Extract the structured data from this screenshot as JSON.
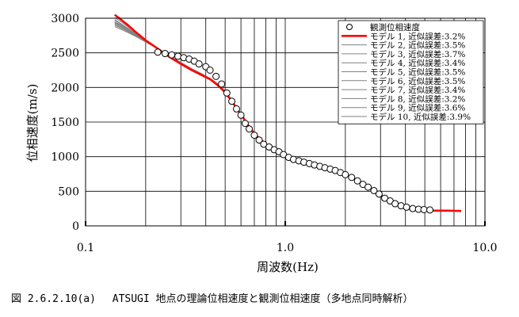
{
  "chart_data": {
    "type": "scatter",
    "title": "",
    "xlabel": "周波数(Hz)",
    "ylabel": "位相速度(m/s)",
    "x_scale": "log",
    "xlim": [
      0.1,
      10.0
    ],
    "ylim": [
      0,
      3000
    ],
    "x_ticks": [
      0.1,
      1.0,
      10.0
    ],
    "x_tick_labels": [
      "0.1",
      "1.0",
      "10.0"
    ],
    "y_ticks": [
      0,
      500,
      1000,
      1500,
      2000,
      2500,
      3000
    ],
    "y_tick_labels": [
      "0",
      "500",
      "1000",
      "1500",
      "2000",
      "2500",
      "3000"
    ],
    "grid": true,
    "legend_position": "top-right",
    "observed": {
      "name": "観測位相速度",
      "points": [
        [
          0.23,
          2510
        ],
        [
          0.25,
          2490
        ],
        [
          0.27,
          2470
        ],
        [
          0.29,
          2450
        ],
        [
          0.31,
          2430
        ],
        [
          0.33,
          2410
        ],
        [
          0.35,
          2380
        ],
        [
          0.37,
          2340
        ],
        [
          0.4,
          2300
        ],
        [
          0.42,
          2250
        ],
        [
          0.45,
          2160
        ],
        [
          0.48,
          2050
        ],
        [
          0.51,
          1920
        ],
        [
          0.54,
          1800
        ],
        [
          0.57,
          1690
        ],
        [
          0.6,
          1600
        ],
        [
          0.63,
          1480
        ],
        [
          0.66,
          1400
        ],
        [
          0.7,
          1310
        ],
        [
          0.74,
          1240
        ],
        [
          0.78,
          1180
        ],
        [
          0.83,
          1140
        ],
        [
          0.88,
          1100
        ],
        [
          0.93,
          1070
        ],
        [
          0.98,
          1030
        ],
        [
          1.04,
          990
        ],
        [
          1.1,
          960
        ],
        [
          1.17,
          940
        ],
        [
          1.24,
          920
        ],
        [
          1.32,
          900
        ],
        [
          1.4,
          880
        ],
        [
          1.49,
          860
        ],
        [
          1.58,
          840
        ],
        [
          1.68,
          820
        ],
        [
          1.78,
          800
        ],
        [
          1.89,
          770
        ],
        [
          2.0,
          740
        ],
        [
          2.15,
          700
        ],
        [
          2.3,
          650
        ],
        [
          2.45,
          600
        ],
        [
          2.6,
          560
        ],
        [
          2.78,
          510
        ],
        [
          2.95,
          460
        ],
        [
          3.15,
          400
        ],
        [
          3.35,
          360
        ],
        [
          3.55,
          320
        ],
        [
          3.8,
          290
        ],
        [
          4.05,
          270
        ],
        [
          4.35,
          250
        ],
        [
          4.65,
          240
        ],
        [
          4.95,
          235
        ],
        [
          5.3,
          230
        ]
      ]
    },
    "series": [
      {
        "name": "モデル 1, 近似誤差:3.2%",
        "color": "#ff0000",
        "x": [
          0.14,
          0.16,
          0.18,
          0.2,
          0.23,
          0.26,
          0.3,
          0.34,
          0.38,
          0.42,
          0.46,
          0.5,
          0.54,
          0.58,
          0.62,
          0.66,
          0.7,
          0.75,
          0.8,
          0.85,
          0.9,
          0.95,
          1.0,
          1.1,
          1.2,
          1.3,
          1.4,
          1.5,
          1.65,
          1.8,
          2.0,
          2.2,
          2.4,
          2.6,
          2.8,
          3.0,
          3.25,
          3.5,
          3.75,
          4.0,
          4.3,
          4.6,
          5.0,
          5.5,
          6.0,
          6.5,
          7.0,
          7.6
        ],
        "y": [
          3050,
          2920,
          2790,
          2680,
          2560,
          2450,
          2340,
          2250,
          2180,
          2120,
          2030,
          1930,
          1800,
          1670,
          1550,
          1430,
          1330,
          1250,
          1180,
          1130,
          1090,
          1050,
          1020,
          970,
          930,
          900,
          880,
          860,
          830,
          790,
          740,
          680,
          620,
          560,
          500,
          440,
          380,
          330,
          290,
          265,
          245,
          235,
          225,
          220,
          220,
          220,
          218,
          215
        ]
      },
      {
        "name": "モデル 2, 近似誤差:3.5%",
        "color": "#808080",
        "x": [
          0.14,
          0.16,
          0.18,
          0.2,
          0.23,
          0.26,
          0.3,
          0.34,
          0.38,
          0.42,
          0.46,
          0.5,
          0.54,
          0.58,
          0.62,
          0.66,
          0.7,
          0.75,
          0.8,
          0.85,
          0.9,
          0.95,
          1.0,
          1.1,
          1.2,
          1.3,
          1.4,
          1.5,
          1.65,
          1.8,
          2.0,
          2.2,
          2.4,
          2.6,
          2.8,
          3.0,
          3.25,
          3.5,
          3.75,
          4.0,
          4.3,
          4.6,
          5.0,
          5.5,
          6.0,
          6.5,
          7.0,
          7.6
        ],
        "y": [
          2940,
          2850,
          2760,
          2670,
          2560,
          2450,
          2350,
          2260,
          2190,
          2120,
          2040,
          1940,
          1810,
          1670,
          1550,
          1430,
          1330,
          1250,
          1180,
          1130,
          1090,
          1050,
          1020,
          970,
          930,
          905,
          885,
          865,
          835,
          795,
          745,
          685,
          625,
          565,
          505,
          445,
          385,
          335,
          295,
          268,
          248,
          238,
          228,
          222,
          222,
          222,
          220,
          218
        ]
      },
      {
        "name": "モデル 3, 近似誤差:3.7%",
        "color": "#808080",
        "x": [
          0.14,
          0.16,
          0.18,
          0.2,
          0.23,
          0.26,
          0.3,
          0.34,
          0.38,
          0.42,
          0.46,
          0.5,
          0.54,
          0.58,
          0.62,
          0.66,
          0.7,
          0.75,
          0.8,
          0.85,
          0.9,
          0.95,
          1.0,
          1.1,
          1.2,
          1.3,
          1.4,
          1.5,
          1.65,
          1.8,
          2.0,
          2.2,
          2.4,
          2.6,
          2.8,
          3.0,
          3.25,
          3.5,
          3.75,
          4.0,
          4.3,
          4.6,
          5.0,
          5.5,
          6.0,
          6.5,
          7.0,
          7.6
        ],
        "y": [
          2900,
          2820,
          2740,
          2660,
          2560,
          2460,
          2360,
          2270,
          2200,
          2130,
          2050,
          1950,
          1820,
          1680,
          1560,
          1440,
          1340,
          1255,
          1185,
          1135,
          1092,
          1052,
          1022,
          972,
          932,
          903,
          882,
          862,
          832,
          792,
          742,
          682,
          622,
          562,
          502,
          442,
          382,
          332,
          292,
          267,
          247,
          237,
          227,
          221,
          221,
          221,
          219,
          217
        ]
      },
      {
        "name": "モデル 4, 近似誤差:3.4%",
        "color": "#808080",
        "x": [
          0.14,
          0.16,
          0.18,
          0.2,
          0.23,
          0.26,
          0.3,
          0.34,
          0.38,
          0.42,
          0.46,
          0.5,
          0.54,
          0.58,
          0.62,
          0.66,
          0.7,
          0.75,
          0.8,
          0.85,
          0.9,
          0.95,
          1.0,
          1.1,
          1.2,
          1.3,
          1.4,
          1.5,
          1.65,
          1.8,
          2.0,
          2.2,
          2.4,
          2.6,
          2.8,
          3.0,
          3.25,
          3.5,
          3.75,
          4.0,
          4.3,
          4.6,
          5.0,
          5.5,
          6.0,
          6.5,
          7.0,
          7.6
        ],
        "y": [
          2980,
          2870,
          2770,
          2670,
          2560,
          2450,
          2345,
          2255,
          2185,
          2118,
          2035,
          1935,
          1805,
          1672,
          1552,
          1432,
          1332,
          1252,
          1182,
          1132,
          1091,
          1051,
          1021,
          971,
          931,
          902,
          881,
          861,
          831,
          791,
          741,
          681,
          621,
          561,
          501,
          441,
          381,
          331,
          291,
          266,
          246,
          236,
          226,
          220,
          220,
          220,
          218,
          216
        ]
      },
      {
        "name": "モデル 5, 近似誤差:3.5%",
        "color": "#808080",
        "x": [
          0.14,
          0.16,
          0.18,
          0.2,
          0.23,
          0.26,
          0.3,
          0.34,
          0.38,
          0.42,
          0.46,
          0.5,
          0.54,
          0.58,
          0.62,
          0.66,
          0.7,
          0.75,
          0.8,
          0.85,
          0.9,
          0.95,
          1.0,
          1.1,
          1.2,
          1.3,
          1.4,
          1.5,
          1.65,
          1.8,
          2.0,
          2.2,
          2.4,
          2.6,
          2.8,
          3.0,
          3.25,
          3.5,
          3.75,
          4.0,
          4.3,
          4.6,
          5.0,
          5.5,
          6.0,
          6.5,
          7.0,
          7.6
        ],
        "y": [
          2950,
          2855,
          2760,
          2668,
          2558,
          2452,
          2352,
          2262,
          2192,
          2122,
          2042,
          1942,
          1812,
          1675,
          1555,
          1435,
          1335,
          1253,
          1183,
          1133,
          1091,
          1051,
          1021,
          971,
          931,
          904,
          884,
          864,
          834,
          794,
          744,
          684,
          624,
          564,
          504,
          444,
          384,
          334,
          294,
          268,
          248,
          237,
          227,
          221,
          221,
          221,
          219,
          217
        ]
      },
      {
        "name": "モデル 6, 近似誤差:3.5%",
        "color": "#808080",
        "x": [
          0.14,
          0.16,
          0.18,
          0.2,
          0.23,
          0.26,
          0.3,
          0.34,
          0.38,
          0.42,
          0.46,
          0.5,
          0.54,
          0.58,
          0.62,
          0.66,
          0.7,
          0.75,
          0.8,
          0.85,
          0.9,
          0.95,
          1.0,
          1.1,
          1.2,
          1.3,
          1.4,
          1.5,
          1.65,
          1.8,
          2.0,
          2.2,
          2.4,
          2.6,
          2.8,
          3.0,
          3.25,
          3.5,
          3.75,
          4.0,
          4.3,
          4.6,
          5.0,
          5.5,
          6.0,
          6.5,
          7.0,
          7.6
        ],
        "y": [
          2930,
          2845,
          2755,
          2665,
          2560,
          2455,
          2355,
          2265,
          2195,
          2125,
          2045,
          1945,
          1815,
          1677,
          1557,
          1437,
          1337,
          1254,
          1184,
          1134,
          1092,
          1052,
          1022,
          972,
          932,
          904,
          884,
          864,
          834,
          794,
          744,
          684,
          624,
          564,
          504,
          444,
          384,
          334,
          294,
          268,
          248,
          238,
          228,
          222,
          222,
          222,
          220,
          218
        ]
      },
      {
        "name": "モデル 7, 近似誤差:3.4%",
        "color": "#808080",
        "x": [
          0.14,
          0.16,
          0.18,
          0.2,
          0.23,
          0.26,
          0.3,
          0.34,
          0.38,
          0.42,
          0.46,
          0.5,
          0.54,
          0.58,
          0.62,
          0.66,
          0.7,
          0.75,
          0.8,
          0.85,
          0.9,
          0.95,
          1.0,
          1.1,
          1.2,
          1.3,
          1.4,
          1.5,
          1.65,
          1.8,
          2.0,
          2.2,
          2.4,
          2.6,
          2.8,
          3.0,
          3.25,
          3.5,
          3.75,
          4.0,
          4.3,
          4.6,
          5.0,
          5.5,
          6.0,
          6.5,
          7.0,
          7.6
        ],
        "y": [
          2970,
          2865,
          2765,
          2670,
          2560,
          2450,
          2348,
          2258,
          2188,
          2120,
          2038,
          1938,
          1808,
          1673,
          1553,
          1433,
          1333,
          1252,
          1182,
          1132,
          1091,
          1051,
          1021,
          971,
          931,
          902,
          882,
          862,
          832,
          792,
          742,
          682,
          622,
          562,
          502,
          442,
          382,
          332,
          292,
          267,
          247,
          236,
          226,
          220,
          220,
          220,
          218,
          216
        ]
      },
      {
        "name": "モデル 8, 近似誤差:3.2%",
        "color": "#808080",
        "x": [
          0.14,
          0.16,
          0.18,
          0.2,
          0.23,
          0.26,
          0.3,
          0.34,
          0.38,
          0.42,
          0.46,
          0.5,
          0.54,
          0.58,
          0.62,
          0.66,
          0.7,
          0.75,
          0.8,
          0.85,
          0.9,
          0.95,
          1.0,
          1.1,
          1.2,
          1.3,
          1.4,
          1.5,
          1.65,
          1.8,
          2.0,
          2.2,
          2.4,
          2.6,
          2.8,
          3.0,
          3.25,
          3.5,
          3.75,
          4.0,
          4.3,
          4.6,
          5.0,
          5.5,
          6.0,
          6.5,
          7.0,
          7.6
        ],
        "y": [
          3010,
          2895,
          2780,
          2675,
          2560,
          2450,
          2342,
          2252,
          2182,
          2119,
          2032,
          1932,
          1802,
          1671,
          1551,
          1431,
          1331,
          1250,
          1180,
          1130,
          1090,
          1050,
          1020,
          970,
          930,
          901,
          880,
          860,
          830,
          790,
          740,
          680,
          620,
          560,
          500,
          440,
          380,
          330,
          290,
          265,
          245,
          235,
          225,
          220,
          220,
          220,
          218,
          215
        ]
      },
      {
        "name": "モデル 9, 近似誤差:3.6%",
        "color": "#808080",
        "x": [
          0.14,
          0.16,
          0.18,
          0.2,
          0.23,
          0.26,
          0.3,
          0.34,
          0.38,
          0.42,
          0.46,
          0.5,
          0.54,
          0.58,
          0.62,
          0.66,
          0.7,
          0.75,
          0.8,
          0.85,
          0.9,
          0.95,
          1.0,
          1.1,
          1.2,
          1.3,
          1.4,
          1.5,
          1.65,
          1.8,
          2.0,
          2.2,
          2.4,
          2.6,
          2.8,
          3.0,
          3.25,
          3.5,
          3.75,
          4.0,
          4.3,
          4.6,
          5.0,
          5.5,
          6.0,
          6.5,
          7.0,
          7.6
        ],
        "y": [
          2915,
          2830,
          2745,
          2662,
          2560,
          2458,
          2358,
          2268,
          2198,
          2128,
          2048,
          1948,
          1818,
          1679,
          1559,
          1439,
          1339,
          1255,
          1185,
          1135,
          1092,
          1052,
          1022,
          972,
          932,
          904,
          883,
          863,
          833,
          793,
          743,
          683,
          623,
          563,
          503,
          443,
          383,
          333,
          293,
          268,
          248,
          238,
          228,
          222,
          222,
          222,
          220,
          218
        ]
      },
      {
        "name": "モデル 10, 近似誤差:3.9%",
        "color": "#808080",
        "x": [
          0.14,
          0.16,
          0.18,
          0.2,
          0.23,
          0.26,
          0.3,
          0.34,
          0.38,
          0.42,
          0.46,
          0.5,
          0.54,
          0.58,
          0.62,
          0.66,
          0.7,
          0.75,
          0.8,
          0.85,
          0.9,
          0.95,
          1.0,
          1.1,
          1.2,
          1.3,
          1.4,
          1.5,
          1.65,
          1.8,
          2.0,
          2.2,
          2.4,
          2.6,
          2.8,
          3.0,
          3.25,
          3.5,
          3.75,
          4.0,
          4.3,
          4.6,
          5.0,
          5.5,
          6.0,
          6.5,
          7.0,
          7.6
        ],
        "y": [
          2880,
          2805,
          2730,
          2655,
          2560,
          2462,
          2362,
          2272,
          2202,
          2132,
          2052,
          1952,
          1822,
          1682,
          1562,
          1442,
          1342,
          1257,
          1187,
          1137,
          1093,
          1053,
          1023,
          973,
          933,
          905,
          885,
          865,
          835,
          795,
          745,
          685,
          625,
          565,
          505,
          445,
          385,
          335,
          295,
          269,
          249,
          239,
          229,
          223,
          223,
          223,
          221,
          219
        ]
      }
    ]
  },
  "caption": "図 2.6.2.10(a)　 ATSUGI 地点の理論位相速度と観測位相速度（多地点同時解析）"
}
